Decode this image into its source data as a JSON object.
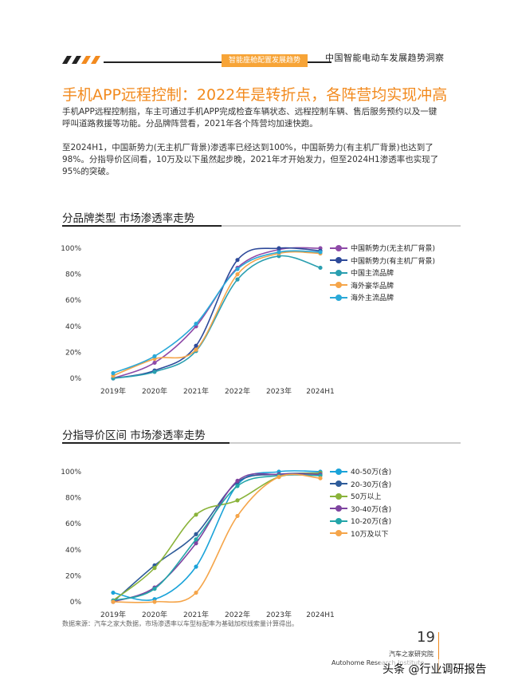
{
  "header": {
    "tag": "智能座舱配置发展趋势",
    "title": "中国智能电动车发展趋势洞察"
  },
  "page_title": "手机APP远程控制：2022年是转折点，各阵营均实现冲高",
  "paragraphs": [
    "手机APP远程控制指，车主可通过手机APP完成检查车辆状态、远程控制车辆、售后服务预约以及一键呼叫道路救援等功能。分品牌阵营看，2021年各个阵营均加速快跑。",
    "至2024H1，中国新势力(无主机厂背景)渗透率已经达到100%，中国新势力(有主机厂背景)也达到了98%。分指导价区间看，10万及以下虽然起步晚，2021年才开始发力，但至2024H1渗透率也实现了95%的突破。"
  ],
  "sections": [
    {
      "title": "分品牌类型  市场渗透率走势"
    },
    {
      "title": "分指导价区间  市场渗透率走势"
    }
  ],
  "colors": {
    "accent": "#f28a1e",
    "tag": "#f7a437"
  },
  "chart_data": [
    {
      "type": "line",
      "title": "分品牌类型  市场渗透率走势",
      "categories": [
        "2019年",
        "2020年",
        "2021年",
        "2022年",
        "2023年",
        "2024H1"
      ],
      "y_ticks": [
        "0%",
        "20%",
        "40%",
        "60%",
        "80%",
        "100%"
      ],
      "ylim": [
        0,
        100
      ],
      "legend_position": "top-right",
      "series": [
        {
          "name": "中国新势力(无主机厂背景)",
          "color": "#8e4aa8",
          "values": [
            0,
            12,
            40,
            85,
            99,
            100
          ]
        },
        {
          "name": "中国新势力(有主机厂背景)",
          "color": "#2e4a9a",
          "values": [
            0,
            6,
            25,
            91,
            100,
            98
          ]
        },
        {
          "name": "中国主流品牌",
          "color": "#2a9fb0",
          "values": [
            0,
            5,
            21,
            76,
            94,
            85
          ]
        },
        {
          "name": "海外豪华品牌",
          "color": "#f5a54a",
          "values": [
            2,
            15,
            22,
            80,
            96,
            96
          ]
        },
        {
          "name": "海外主流品牌",
          "color": "#2aa9d8",
          "values": [
            4,
            17,
            42,
            84,
            97,
            97
          ]
        }
      ]
    },
    {
      "type": "line",
      "title": "分指导价区间  市场渗透率走势",
      "categories": [
        "2019年",
        "2020年",
        "2021年",
        "2022年",
        "2023年",
        "2024H1"
      ],
      "y_ticks": [
        "0%",
        "20%",
        "40%",
        "60%",
        "80%",
        "100%"
      ],
      "ylim": [
        0,
        100
      ],
      "legend_position": "top-right",
      "series": [
        {
          "name": "40-50万(含)",
          "color": "#1aa3d9",
          "values": [
            7,
            2,
            27,
            90,
            100,
            100
          ]
        },
        {
          "name": "20-30万(含)",
          "color": "#2e5c9a",
          "values": [
            0,
            28,
            52,
            92,
            98,
            99
          ]
        },
        {
          "name": "50万以上",
          "color": "#8ab33a",
          "values": [
            1,
            26,
            67,
            78,
            96,
            99
          ]
        },
        {
          "name": "30-40万(含)",
          "color": "#7e44a0",
          "values": [
            0,
            11,
            45,
            93,
            98,
            98
          ]
        },
        {
          "name": "10-20万(含)",
          "color": "#23a5a9",
          "values": [
            1,
            10,
            48,
            89,
            97,
            97
          ]
        },
        {
          "name": "10万及以下",
          "color": "#f5a54a",
          "values": [
            0,
            0,
            7,
            66,
            96,
            95
          ]
        }
      ]
    }
  ],
  "source": "数据来源：汽车之家大数据，市场渗透率以车型标配率为基础加权线索量计算得出。",
  "footer": {
    "page_number": "19",
    "org_cn": "汽车之家研究院",
    "org_en": "Autohome Research Institute",
    "watermark": "头条 @行业调研报告"
  }
}
